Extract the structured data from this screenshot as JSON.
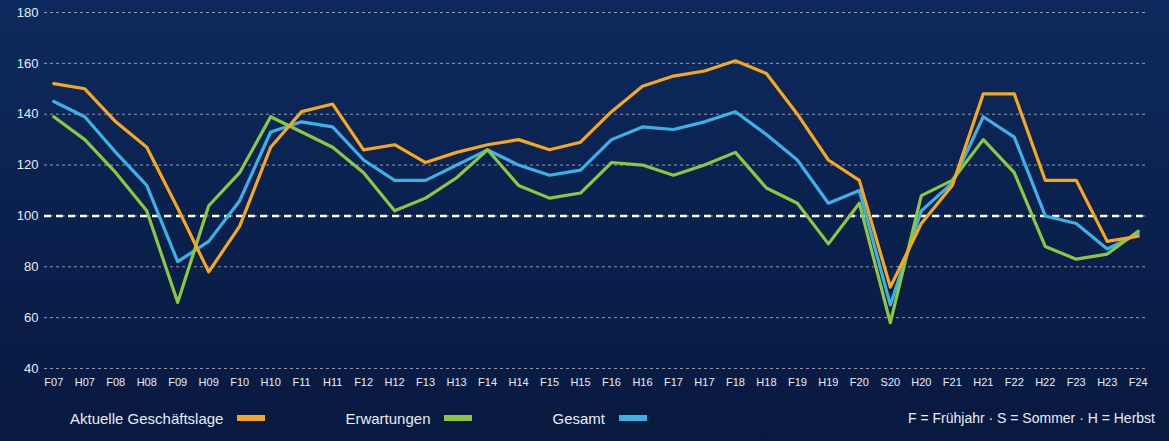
{
  "chart_data": {
    "type": "line",
    "categories": [
      "F07",
      "H07",
      "F08",
      "H08",
      "F09",
      "H09",
      "F10",
      "H10",
      "F11",
      "H11",
      "F12",
      "H12",
      "F13",
      "H13",
      "F14",
      "H14",
      "F15",
      "H15",
      "F16",
      "H16",
      "F17",
      "H17",
      "F18",
      "H18",
      "F19",
      "H19",
      "F20",
      "S20",
      "H20",
      "F21",
      "H21",
      "F22",
      "H22",
      "F23",
      "H23",
      "F24"
    ],
    "series": [
      {
        "name": "Aktuelle Geschäftslage",
        "color": "#f5a81e",
        "values": [
          152,
          150,
          137,
          127,
          103,
          78,
          96,
          127,
          141,
          144,
          126,
          128,
          121,
          125,
          128,
          130,
          126,
          129,
          141,
          151,
          155,
          157,
          161,
          156,
          140,
          122,
          114,
          72,
          97,
          112,
          148,
          148,
          114,
          114,
          90,
          92
        ]
      },
      {
        "name": "Erwartungen",
        "color": "#8dc63f",
        "values": [
          139,
          130,
          117,
          102,
          66,
          104,
          117,
          139,
          133,
          127,
          117,
          102,
          107,
          115,
          126,
          112,
          107,
          109,
          121,
          120,
          116,
          120,
          125,
          111,
          105,
          89,
          105,
          58,
          108,
          114,
          130,
          117,
          88,
          83,
          85,
          94
        ]
      },
      {
        "name": "Gesamt",
        "color": "#3cb1e6",
        "values": [
          145,
          139,
          125,
          112,
          82,
          90,
          106,
          133,
          137,
          135,
          122,
          114,
          114,
          120,
          126,
          120,
          116,
          118,
          130,
          135,
          134,
          137,
          141,
          132,
          122,
          105,
          110,
          65,
          102,
          113,
          139,
          131,
          100,
          97,
          87,
          93
        ]
      }
    ],
    "ylim": [
      40,
      180
    ],
    "yticks": [
      40,
      60,
      80,
      100,
      120,
      140,
      160,
      180
    ],
    "grid": true,
    "reference_line": 100,
    "legend": "bottom",
    "annotation": "F = Frühjahr · S = Sommer · H = Herbst"
  }
}
